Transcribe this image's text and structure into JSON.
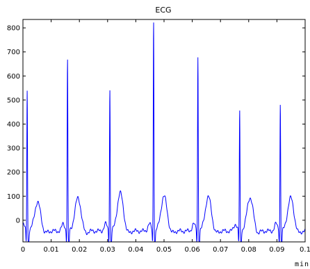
{
  "chart_data": {
    "type": "line",
    "title": "ECG",
    "xlabel": "min",
    "ylabel": "",
    "xlim": [
      0,
      0.1
    ],
    "ylim": [
      -90,
      835
    ],
    "grid": false,
    "line_color": "#0000ff",
    "x_ticks": [
      0,
      0.01,
      0.02,
      0.03,
      0.04,
      0.05,
      0.06,
      0.07,
      0.08,
      0.09,
      0.1
    ],
    "x_tick_labels": [
      "0",
      "0.01",
      "0.02",
      "0.03",
      "0.04",
      "0.05",
      "0.06",
      "0.07",
      "0.08",
      "0.09",
      "0.1"
    ],
    "y_ticks": [
      0,
      100,
      200,
      300,
      400,
      500,
      600,
      700,
      800
    ],
    "y_tick_labels": [
      "0",
      "100",
      "200",
      "300",
      "400",
      "500",
      "600",
      "700",
      "800"
    ],
    "beats": [
      {
        "r_time": 0.0015,
        "r_peak": 545,
        "t_peak": 80
      },
      {
        "r_time": 0.0158,
        "r_peak": 670,
        "t_peak": 98
      },
      {
        "r_time": 0.0308,
        "r_peak": 550,
        "t_peak": 118
      },
      {
        "r_time": 0.0463,
        "r_peak": 835,
        "t_peak": 105
      },
      {
        "r_time": 0.062,
        "r_peak": 680,
        "t_peak": 102
      },
      {
        "r_time": 0.0768,
        "r_peak": 455,
        "t_peak": 100
      },
      {
        "r_time": 0.0912,
        "r_peak": 485,
        "t_peak": 98
      }
    ]
  }
}
